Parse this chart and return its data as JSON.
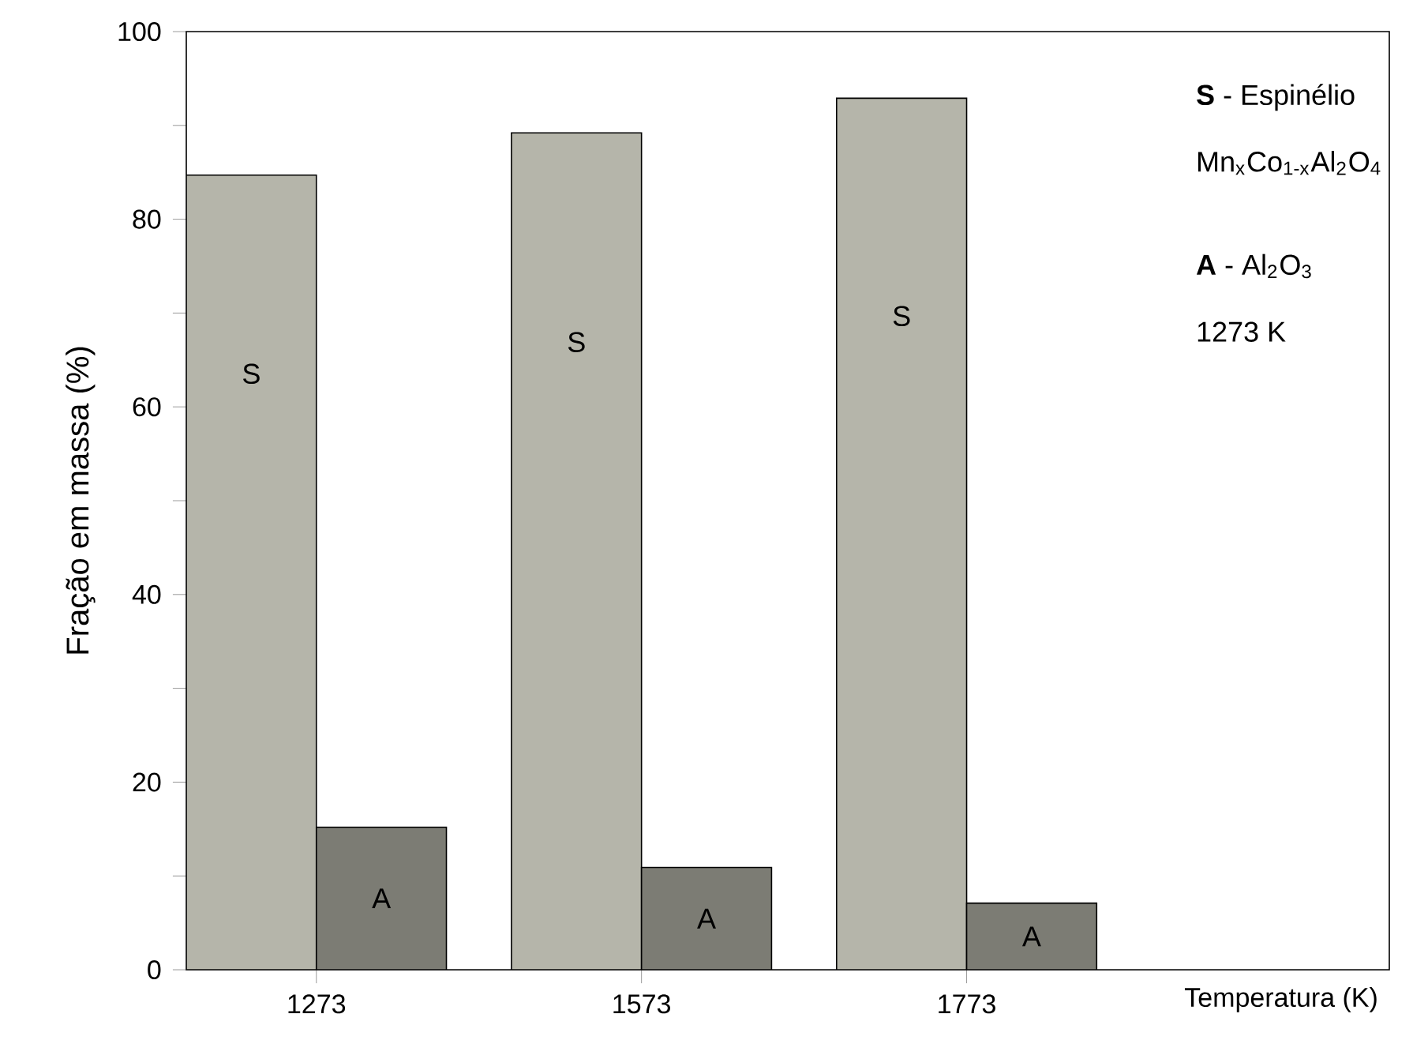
{
  "chart_data": {
    "type": "bar",
    "xlabel": "Temperatura (K)",
    "ylabel": "Fração em massa (%)",
    "categories": [
      "1273",
      "1573",
      "1773"
    ],
    "series": [
      {
        "name": "S",
        "color": "#b5b5aa",
        "values": [
          84.7,
          89.2,
          92.9
        ]
      },
      {
        "name": "A",
        "color": "#7c7c74",
        "values": [
          15.2,
          10.9,
          7.1
        ]
      }
    ],
    "ylim": [
      0,
      100
    ],
    "yticks": [
      0,
      {
        "value": 10,
        "label": null
      },
      20,
      {
        "value": 30,
        "label": null
      },
      40,
      {
        "value": 50,
        "label": null
      },
      60,
      {
        "value": 70,
        "label": null
      },
      80,
      {
        "value": 90,
        "label": null
      },
      100
    ],
    "annotations": [
      "**S** - Espinélio",
      "Mn$_{x}$Co$_{1-x}$Al$_{2}$O$_{4}$",
      "**A** - Al$_{2}$O$_{3}$",
      "1273 K"
    ]
  }
}
